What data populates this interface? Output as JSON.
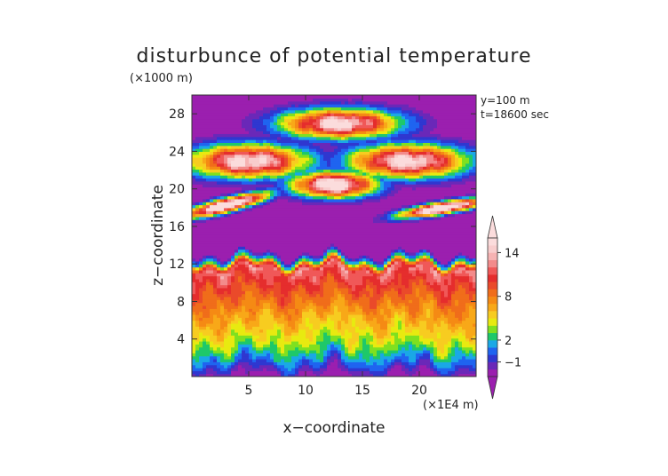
{
  "chart_data": {
    "type": "heatmap",
    "title": "disturbunce of potential temperature",
    "xlabel": "x−coordinate",
    "ylabel": "z−coordinate",
    "x_unit": "(×1E4 m)",
    "y_unit": "(×1000 m)",
    "annotations": [
      "y=100 m",
      "t=18600 sec"
    ],
    "xlim": [
      0,
      25
    ],
    "ylim": [
      0,
      30
    ],
    "x_ticks": [
      "5",
      "10",
      "15",
      "20"
    ],
    "x_tick_values": [
      5,
      10,
      15,
      20
    ],
    "y_ticks": [
      "4",
      "8",
      "12",
      "16",
      "20",
      "24",
      "28"
    ],
    "y_tick_values": [
      4,
      8,
      12,
      16,
      20,
      24,
      28
    ],
    "colorbar": {
      "labels": [
        "−1",
        "2",
        "8",
        "14"
      ],
      "label_values": [
        -1,
        2,
        8,
        14
      ],
      "levels": [
        -3,
        -2,
        -1,
        0,
        1,
        2,
        3,
        4,
        5,
        6,
        7,
        8,
        9,
        10,
        11,
        12,
        13,
        14,
        15,
        16
      ],
      "colors": [
        "#9b1faf",
        "#6a28b8",
        "#2f37d0",
        "#1f64f0",
        "#1aa8e6",
        "#1ec86a",
        "#7fe020",
        "#e8ea10",
        "#f7cc20",
        "#f8a818",
        "#f58a14",
        "#f06d1a",
        "#ea4a2a",
        "#e52d2d",
        "#f05858",
        "#f38b8b",
        "#f6b3b3",
        "#f8cdcd",
        "#fbdcdc"
      ],
      "extend": "both"
    },
    "field_profile": {
      "z": [
        0,
        0.5,
        1,
        1.5,
        2,
        2.5,
        3,
        4,
        5,
        6,
        7,
        8,
        9,
        10,
        10.8,
        11.5,
        12,
        12.3,
        12.7,
        13.2
      ],
      "values": [
        -2.5,
        -1.8,
        -0.6,
        0.5,
        1.2,
        2.2,
        3.3,
        4.6,
        5.6,
        6.6,
        7.5,
        8.4,
        9.3,
        10.3,
        11.2,
        12.1,
        8,
        3,
        0.5,
        -3
      ]
    }
  }
}
